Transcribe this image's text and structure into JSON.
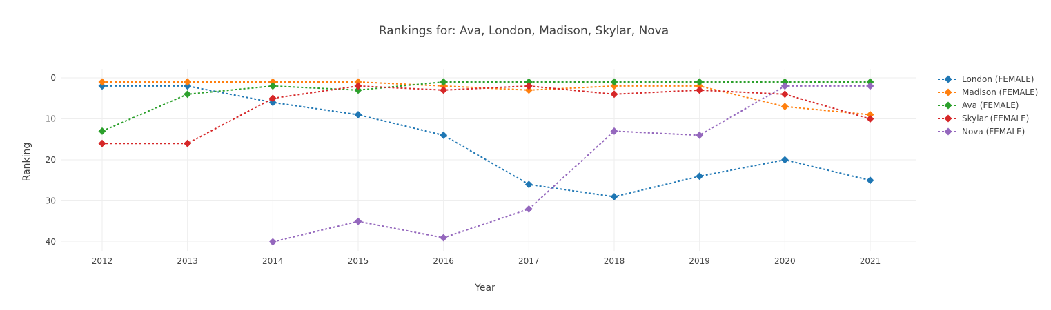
{
  "chart_data": {
    "type": "line",
    "title": "Rankings for: Ava, London, Madison, Skylar, Nova",
    "xlabel": "Year",
    "ylabel": "Ranking",
    "x": [
      2012,
      2013,
      2014,
      2015,
      2016,
      2017,
      2018,
      2019,
      2020,
      2021
    ],
    "x_tick_labels": [
      "2012",
      "2013",
      "2014",
      "2015",
      "2016",
      "2017",
      "2018",
      "2019",
      "2020",
      "2021"
    ],
    "y_ticks": [
      0,
      10,
      20,
      30,
      40
    ],
    "y_tick_labels": [
      "0",
      "10",
      "20",
      "30",
      "40"
    ],
    "ylim": [
      42,
      -2
    ],
    "y_reversed": true,
    "grid": true,
    "legend_position": "top-right",
    "line_style": "dotted",
    "marker": "diamond",
    "series": [
      {
        "name": "London (FEMALE)",
        "color": "#1f77b4",
        "values": [
          2,
          2,
          6,
          9,
          14,
          26,
          29,
          24,
          20,
          25
        ]
      },
      {
        "name": "Madison (FEMALE)",
        "color": "#ff7f0e",
        "values": [
          1,
          1,
          1,
          1,
          2,
          3,
          2,
          2,
          7,
          9
        ]
      },
      {
        "name": "Ava (FEMALE)",
        "color": "#2ca02c",
        "values": [
          13,
          4,
          2,
          3,
          1,
          1,
          1,
          1,
          1,
          1
        ]
      },
      {
        "name": "Skylar (FEMALE)",
        "color": "#d62728",
        "values": [
          16,
          16,
          5,
          2,
          3,
          2,
          4,
          3,
          4,
          10
        ]
      },
      {
        "name": "Nova (FEMALE)",
        "color": "#9467bd",
        "values": [
          null,
          null,
          40,
          35,
          39,
          32,
          13,
          14,
          2,
          2
        ]
      }
    ]
  }
}
